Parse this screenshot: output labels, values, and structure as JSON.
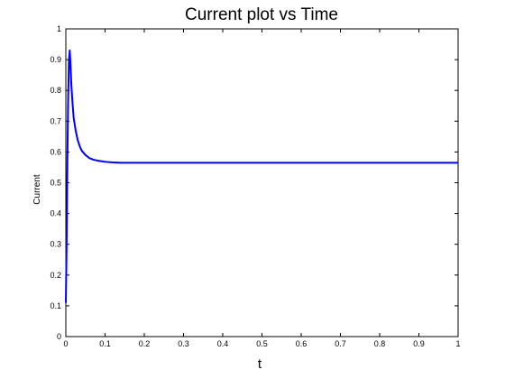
{
  "chart_data": {
    "type": "line",
    "title": "Current plot vs Time",
    "xlabel": "t",
    "ylabel": "Current",
    "xlim": [
      0,
      1
    ],
    "ylim": [
      0,
      1
    ],
    "grid": false,
    "xticks": [
      0,
      0.1,
      0.2,
      0.3,
      0.4,
      0.5,
      0.6,
      0.7,
      0.8,
      0.9,
      1
    ],
    "xtick_labels": [
      "0",
      "0.1",
      "0.2",
      "0.3",
      "0.4",
      "0.5",
      "0.6",
      "0.7",
      "0.8",
      "0.9",
      "1"
    ],
    "yticks": [
      0,
      0.1,
      0.2,
      0.3,
      0.4,
      0.5,
      0.6,
      0.7,
      0.8,
      0.9,
      1
    ],
    "ytick_labels": [
      "0",
      "0.1",
      "0.2",
      "0.3",
      "0.4",
      "0.5",
      "0.6",
      "0.7",
      "0.8",
      "0.9",
      "1"
    ],
    "series": [
      {
        "color": "#0000ff",
        "x": [
          0,
          0.002,
          0.004,
          0.006,
          0.008,
          0.01,
          0.012,
          0.014,
          0.017,
          0.02,
          0.025,
          0.03,
          0.035,
          0.04,
          0.05,
          0.06,
          0.07,
          0.08,
          0.09,
          0.1,
          0.12,
          0.14,
          0.17,
          0.2,
          0.3,
          0.4,
          0.5,
          0.6,
          0.7,
          0.8,
          0.9,
          1.0
        ],
        "y": [
          0.11,
          0.3,
          0.58,
          0.78,
          0.9,
          0.93,
          0.88,
          0.82,
          0.76,
          0.71,
          0.67,
          0.64,
          0.62,
          0.605,
          0.59,
          0.58,
          0.575,
          0.572,
          0.57,
          0.568,
          0.566,
          0.565,
          0.565,
          0.565,
          0.565,
          0.565,
          0.565,
          0.565,
          0.565,
          0.565,
          0.565,
          0.565
        ]
      }
    ]
  }
}
